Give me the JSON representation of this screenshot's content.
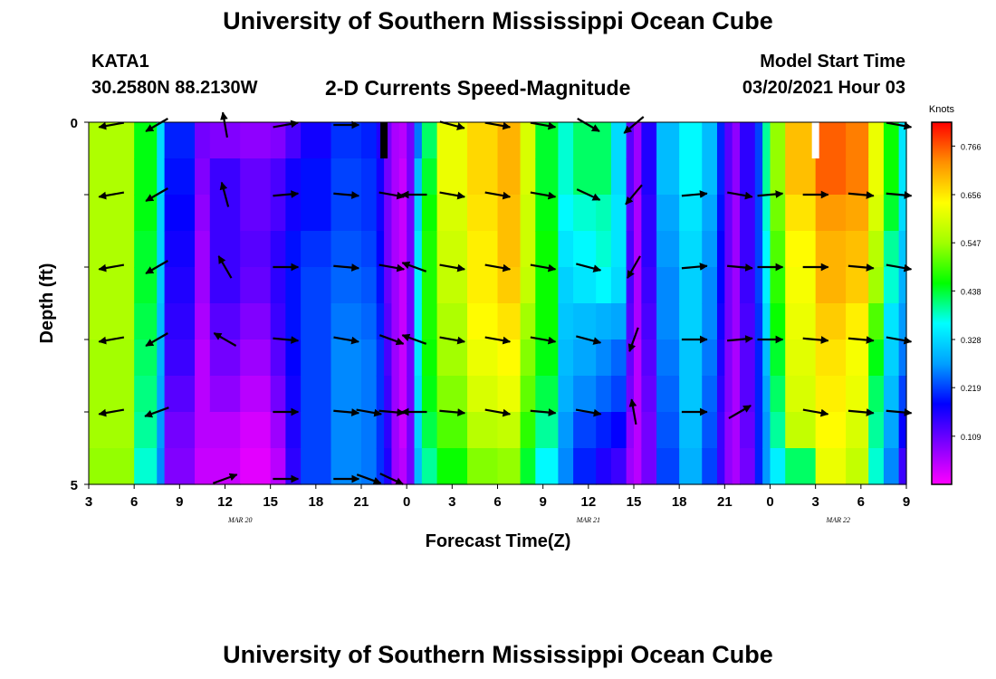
{
  "header": {
    "title": "University of Southern Mississippi Ocean Cube",
    "station": "KATA1",
    "coordinates": "30.2580N 88.2130W",
    "chart_title": "2-D Currents Speed-Magnitude",
    "model_start_label": "Model Start Time",
    "model_start_value": "03/20/2021 Hour 03"
  },
  "footer": {
    "title": "University of Southern Mississippi Ocean Cube"
  },
  "chart_data": {
    "type": "heatmap",
    "title": "2-D Currents Speed-Magnitude",
    "xlabel": "Forecast Time(Z)",
    "ylabel": "Depth (ft)",
    "x_range_hours": [
      0,
      54
    ],
    "y_range": [
      0,
      5
    ],
    "x_ticks": [
      {
        "h": 0,
        "label": "3"
      },
      {
        "h": 3,
        "label": "6"
      },
      {
        "h": 6,
        "label": "9"
      },
      {
        "h": 9,
        "label": "12"
      },
      {
        "h": 12,
        "label": "15"
      },
      {
        "h": 15,
        "label": "18"
      },
      {
        "h": 18,
        "label": "21"
      },
      {
        "h": 21,
        "label": "0"
      },
      {
        "h": 24,
        "label": "3"
      },
      {
        "h": 27,
        "label": "6"
      },
      {
        "h": 30,
        "label": "9"
      },
      {
        "h": 33,
        "label": "12"
      },
      {
        "h": 36,
        "label": "15"
      },
      {
        "h": 39,
        "label": "18"
      },
      {
        "h": 42,
        "label": "21"
      },
      {
        "h": 45,
        "label": "0"
      },
      {
        "h": 48,
        "label": "3"
      },
      {
        "h": 51,
        "label": "6"
      },
      {
        "h": 54,
        "label": "9"
      }
    ],
    "y_ticks": [
      {
        "v": 0,
        "label": "0"
      },
      {
        "v": 5,
        "label": "5"
      }
    ],
    "date_labels": [
      {
        "h": 10,
        "label": "MAR 20"
      },
      {
        "h": 33,
        "label": "MAR 21"
      },
      {
        "h": 49.5,
        "label": "MAR 22"
      }
    ],
    "colorbar": {
      "unit": "Knots",
      "min": 0.0,
      "max": 0.82,
      "tick_values": [
        0.766,
        0.656,
        0.547,
        0.438,
        0.328,
        0.219,
        0.109
      ],
      "tick_labels": [
        "0.766",
        "0.656",
        "0.547",
        "0.438",
        "0.328",
        "0.219",
        "0.109"
      ],
      "colors": [
        "#ff00ff",
        "#7f00ff",
        "#0000ff",
        "#00a0ff",
        "#00ffff",
        "#00ff00",
        "#a0ff00",
        "#ffff00",
        "#ff9000",
        "#ff0000"
      ]
    },
    "depth_rows": [
      0.25,
      0.75,
      1.25,
      1.75,
      2.25,
      2.75,
      3.25,
      3.75,
      4.25,
      4.75
    ],
    "columns": [
      {
        "h": 0,
        "v": [
          0.56,
          0.56,
          0.56,
          0.56,
          0.56,
          0.56,
          0.55,
          0.55,
          0.55,
          0.54
        ]
      },
      {
        "h": 3,
        "v": [
          0.45,
          0.45,
          0.45,
          0.44,
          0.44,
          0.43,
          0.42,
          0.41,
          0.4,
          0.38
        ]
      },
      {
        "h": 4.5,
        "v": [
          0.33,
          0.33,
          0.32,
          0.32,
          0.31,
          0.3,
          0.29,
          0.28,
          0.27,
          0.26
        ]
      },
      {
        "h": 5,
        "v": [
          0.2,
          0.19,
          0.18,
          0.17,
          0.16,
          0.15,
          0.14,
          0.12,
          0.1,
          0.09
        ]
      },
      {
        "h": 7,
        "v": [
          0.1,
          0.09,
          0.08,
          0.07,
          0.07,
          0.06,
          0.05,
          0.05,
          0.05,
          0.04
        ]
      },
      {
        "h": 8,
        "v": [
          0.09,
          0.14,
          0.14,
          0.14,
          0.14,
          0.12,
          0.1,
          0.08,
          0.05,
          0.04
        ]
      },
      {
        "h": 10,
        "v": [
          0.08,
          0.11,
          0.11,
          0.12,
          0.11,
          0.09,
          0.07,
          0.05,
          0.03,
          0.02
        ]
      },
      {
        "h": 12,
        "v": [
          0.09,
          0.13,
          0.13,
          0.15,
          0.15,
          0.14,
          0.12,
          0.1,
          0.07,
          0.05
        ]
      },
      {
        "h": 13,
        "v": [
          0.13,
          0.17,
          0.17,
          0.19,
          0.19,
          0.19,
          0.18,
          0.17,
          0.16,
          0.15
        ]
      },
      {
        "h": 14,
        "v": [
          0.17,
          0.19,
          0.19,
          0.21,
          0.22,
          0.22,
          0.22,
          0.22,
          0.22,
          0.22
        ]
      },
      {
        "h": 16,
        "v": [
          0.21,
          0.22,
          0.22,
          0.23,
          0.24,
          0.25,
          0.26,
          0.26,
          0.26,
          0.26
        ]
      },
      {
        "h": 18,
        "v": [
          0.2,
          0.21,
          0.21,
          0.22,
          0.23,
          0.24,
          0.25,
          0.25,
          0.25,
          0.25
        ]
      },
      {
        "h": 19,
        "v": [
          0.16,
          0.17,
          0.17,
          0.18,
          0.19,
          0.2,
          0.21,
          0.21,
          0.21,
          0.21
        ]
      },
      {
        "h": 19.5,
        "v": [
          0.1,
          0.1,
          0.1,
          0.1,
          0.11,
          0.12,
          0.13,
          0.14,
          0.15,
          0.16
        ]
      },
      {
        "h": 20,
        "v": [
          0.06,
          0.06,
          0.06,
          0.06,
          0.07,
          0.07,
          0.07,
          0.07,
          0.07,
          0.07
        ]
      },
      {
        "h": 20.5,
        "v": [
          0.05,
          0.04,
          0.04,
          0.04,
          0.04,
          0.04,
          0.04,
          0.04,
          0.04,
          0.05
        ]
      },
      {
        "h": 21,
        "v": [
          0.1,
          0.1,
          0.1,
          0.1,
          0.1,
          0.1,
          0.1,
          0.1,
          0.1,
          0.1
        ]
      },
      {
        "h": 21.5,
        "v": [
          0.25,
          0.3,
          0.32,
          0.34,
          0.35,
          0.35,
          0.34,
          0.33,
          0.32,
          0.3
        ]
      },
      {
        "h": 22,
        "v": [
          0.42,
          0.44,
          0.46,
          0.47,
          0.47,
          0.47,
          0.46,
          0.45,
          0.43,
          0.4
        ]
      },
      {
        "h": 23,
        "v": [
          0.62,
          0.62,
          0.6,
          0.59,
          0.58,
          0.56,
          0.55,
          0.53,
          0.5,
          0.46
        ]
      },
      {
        "h": 25,
        "v": [
          0.67,
          0.67,
          0.66,
          0.65,
          0.65,
          0.64,
          0.62,
          0.6,
          0.57,
          0.53
        ]
      },
      {
        "h": 27,
        "v": [
          0.7,
          0.7,
          0.69,
          0.69,
          0.68,
          0.66,
          0.64,
          0.62,
          0.58,
          0.54
        ]
      },
      {
        "h": 28.5,
        "v": [
          0.6,
          0.6,
          0.59,
          0.59,
          0.58,
          0.55,
          0.53,
          0.51,
          0.48,
          0.44
        ]
      },
      {
        "h": 29.5,
        "v": [
          0.44,
          0.44,
          0.45,
          0.46,
          0.46,
          0.46,
          0.45,
          0.43,
          0.4,
          0.36
        ]
      },
      {
        "h": 31,
        "v": [
          0.38,
          0.38,
          0.36,
          0.34,
          0.32,
          0.31,
          0.3,
          0.29,
          0.27,
          0.26
        ]
      },
      {
        "h": 32,
        "v": [
          0.42,
          0.42,
          0.38,
          0.36,
          0.34,
          0.3,
          0.28,
          0.26,
          0.22,
          0.2
        ]
      },
      {
        "h": 33.5,
        "v": [
          0.42,
          0.42,
          0.39,
          0.38,
          0.36,
          0.29,
          0.26,
          0.24,
          0.2,
          0.16
        ]
      },
      {
        "h": 34.5,
        "v": [
          0.33,
          0.33,
          0.34,
          0.34,
          0.33,
          0.28,
          0.24,
          0.22,
          0.18,
          0.14
        ]
      },
      {
        "h": 35.5,
        "v": [
          0.12,
          0.12,
          0.12,
          0.13,
          0.13,
          0.12,
          0.11,
          0.1,
          0.08,
          0.07
        ]
      },
      {
        "h": 36,
        "v": [
          0.07,
          0.07,
          0.06,
          0.06,
          0.06,
          0.06,
          0.05,
          0.05,
          0.05,
          0.05
        ]
      },
      {
        "h": 36.5,
        "v": [
          0.16,
          0.16,
          0.15,
          0.15,
          0.14,
          0.13,
          0.12,
          0.11,
          0.1,
          0.1
        ]
      },
      {
        "h": 37.5,
        "v": [
          0.3,
          0.3,
          0.28,
          0.27,
          0.26,
          0.26,
          0.25,
          0.24,
          0.23,
          0.22
        ]
      },
      {
        "h": 39,
        "v": [
          0.36,
          0.36,
          0.34,
          0.33,
          0.32,
          0.32,
          0.31,
          0.31,
          0.3,
          0.29
        ]
      },
      {
        "h": 40.5,
        "v": [
          0.3,
          0.3,
          0.28,
          0.27,
          0.26,
          0.26,
          0.25,
          0.24,
          0.23,
          0.22
        ]
      },
      {
        "h": 41.5,
        "v": [
          0.2,
          0.2,
          0.19,
          0.18,
          0.18,
          0.17,
          0.16,
          0.15,
          0.14,
          0.14
        ]
      },
      {
        "h": 42,
        "v": [
          0.12,
          0.12,
          0.11,
          0.11,
          0.1,
          0.1,
          0.09,
          0.09,
          0.08,
          0.08
        ]
      },
      {
        "h": 42.5,
        "v": [
          0.08,
          0.08,
          0.07,
          0.07,
          0.07,
          0.07,
          0.06,
          0.06,
          0.06,
          0.06
        ]
      },
      {
        "h": 43,
        "v": [
          0.15,
          0.15,
          0.14,
          0.14,
          0.14,
          0.13,
          0.12,
          0.12,
          0.11,
          0.1
        ]
      },
      {
        "h": 44,
        "v": [
          0.22,
          0.22,
          0.22,
          0.22,
          0.22,
          0.21,
          0.2,
          0.2,
          0.2,
          0.2
        ]
      },
      {
        "h": 44.5,
        "v": [
          0.4,
          0.4,
          0.38,
          0.36,
          0.35,
          0.33,
          0.3,
          0.28,
          0.27,
          0.27
        ]
      },
      {
        "h": 45,
        "v": [
          0.54,
          0.54,
          0.52,
          0.5,
          0.48,
          0.46,
          0.44,
          0.42,
          0.4,
          0.35
        ]
      },
      {
        "h": 46,
        "v": [
          0.69,
          0.69,
          0.66,
          0.64,
          0.63,
          0.62,
          0.61,
          0.6,
          0.58,
          0.42
        ]
      },
      {
        "h": 48,
        "v": [
          0.76,
          0.76,
          0.72,
          0.7,
          0.7,
          0.68,
          0.66,
          0.65,
          0.64,
          0.62
        ]
      },
      {
        "h": 50,
        "v": [
          0.74,
          0.74,
          0.71,
          0.69,
          0.68,
          0.65,
          0.63,
          0.62,
          0.6,
          0.58
        ]
      },
      {
        "h": 51.5,
        "v": [
          0.62,
          0.62,
          0.6,
          0.57,
          0.55,
          0.5,
          0.45,
          0.42,
          0.4,
          0.38
        ]
      },
      {
        "h": 52.5,
        "v": [
          0.46,
          0.46,
          0.44,
          0.4,
          0.38,
          0.34,
          0.32,
          0.3,
          0.28,
          0.26
        ]
      },
      {
        "h": 53.5,
        "v": [
          0.34,
          0.34,
          0.33,
          0.31,
          0.29,
          0.27,
          0.25,
          0.22,
          0.18,
          0.14
        ]
      }
    ],
    "arrow_depths": [
      0,
      1,
      2,
      3,
      4,
      5
    ],
    "arrows": [
      {
        "h": 1.5,
        "dirs": [
          190,
          190,
          190,
          190,
          190,
          null
        ]
      },
      {
        "h": 4.5,
        "dirs": [
          210,
          210,
          210,
          210,
          200,
          null
        ]
      },
      {
        "h": 9,
        "dirs": [
          100,
          105,
          120,
          150,
          null,
          20
        ]
      },
      {
        "h": 13,
        "dirs": [
          10,
          5,
          0,
          -5,
          0,
          0
        ]
      },
      {
        "h": 17,
        "dirs": [
          0,
          -5,
          -5,
          -10,
          -5,
          0
        ]
      },
      {
        "h": 18.5,
        "dirs": [
          null,
          null,
          null,
          null,
          -10,
          -20
        ]
      },
      {
        "h": 20,
        "dirs": [
          null,
          -10,
          -10,
          -20,
          -5,
          -25
        ]
      },
      {
        "h": 21.5,
        "dirs": [
          null,
          180,
          160,
          160,
          180,
          null
        ]
      },
      {
        "h": 24,
        "dirs": [
          -15,
          -10,
          -10,
          -10,
          -5,
          null
        ]
      },
      {
        "h": 27,
        "dirs": [
          -10,
          -10,
          -10,
          -10,
          -10,
          null
        ]
      },
      {
        "h": 30,
        "dirs": [
          -10,
          -10,
          -10,
          -10,
          -5,
          null
        ]
      },
      {
        "h": 33,
        "dirs": [
          -30,
          -25,
          -15,
          -15,
          -10,
          null
        ]
      },
      {
        "h": 36,
        "dirs": [
          220,
          230,
          240,
          250,
          100,
          null
        ]
      },
      {
        "h": 40,
        "dirs": [
          null,
          5,
          5,
          0,
          0,
          null
        ]
      },
      {
        "h": 43,
        "dirs": [
          null,
          -10,
          -5,
          5,
          30,
          null
        ]
      },
      {
        "h": 45,
        "dirs": [
          null,
          5,
          0,
          0,
          null,
          null
        ]
      },
      {
        "h": 48,
        "dirs": [
          null,
          0,
          0,
          -5,
          -10,
          null
        ]
      },
      {
        "h": 51,
        "dirs": [
          null,
          -5,
          -5,
          -5,
          -5,
          null
        ]
      },
      {
        "h": 53.5,
        "dirs": [
          -10,
          -5,
          -10,
          -10,
          -5,
          null
        ]
      }
    ],
    "bars": [
      {
        "h": 19.5,
        "color": "#000000",
        "from": 0,
        "to": 0.5
      },
      {
        "h": 48,
        "color": "#ffffff",
        "from": 0,
        "to": 0.5
      }
    ]
  }
}
